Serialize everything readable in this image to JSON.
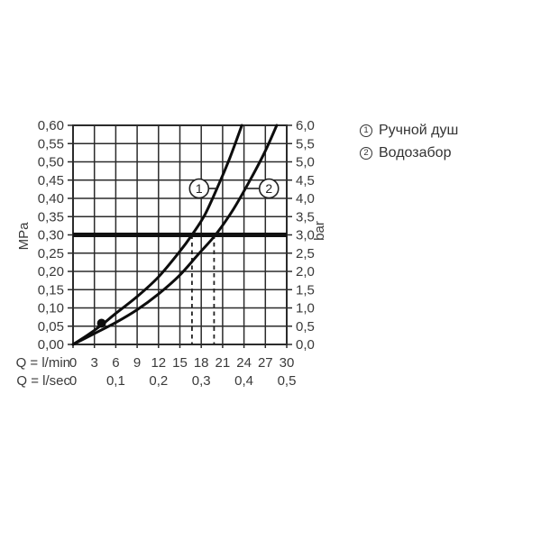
{
  "accent_colors": {
    "grid": "#2b2b2b",
    "curve": "#0d0d0d",
    "ref_line": "#111111",
    "text": "#3a3a3a",
    "background": "#ffffff"
  },
  "chart_data": {
    "type": "line",
    "title": "",
    "x_axis": {
      "label_lmin": "Q = l/min",
      "label_lsec": "Q = l/sec",
      "ticks_lmin": [
        "0",
        "3",
        "6",
        "9",
        "12",
        "15",
        "18",
        "21",
        "24",
        "27",
        "30"
      ],
      "ticks_lsec": [
        "0",
        "0,1",
        "0,2",
        "0,3",
        "0,4",
        "0,5"
      ],
      "range_lmin": [
        0,
        30
      ],
      "grid_step_lmin": 3
    },
    "y_axis_left": {
      "label": "MPa",
      "ticks": [
        "0,60",
        "0,55",
        "0,50",
        "0,45",
        "0,40",
        "0,35",
        "0,30",
        "0,25",
        "0,20",
        "0,15",
        "0,10",
        "0,05",
        "0,00"
      ],
      "range": [
        0,
        0.6
      ],
      "grid_step": 0.05
    },
    "y_axis_right": {
      "label": "bar",
      "ticks": [
        "6,0",
        "5,5",
        "5,0",
        "4,5",
        "4,0",
        "3,5",
        "3,0",
        "2,5",
        "2,0",
        "1,5",
        "1,0",
        "0,5",
        "0,0"
      ],
      "range": [
        0,
        6
      ]
    },
    "series": [
      {
        "id": "1",
        "name": "Ручной душ",
        "points": [
          [
            0,
            0
          ],
          [
            2,
            0.025
          ],
          [
            4,
            0.053
          ],
          [
            6,
            0.085
          ],
          [
            9,
            0.131
          ],
          [
            12,
            0.185
          ],
          [
            15,
            0.255
          ],
          [
            16.7,
            0.3
          ],
          [
            18.5,
            0.355
          ],
          [
            20.5,
            0.44
          ],
          [
            22,
            0.51
          ],
          [
            23.7,
            0.6
          ]
        ]
      },
      {
        "id": "2",
        "name": "Водозабор",
        "points": [
          [
            0,
            0
          ],
          [
            3,
            0.03
          ],
          [
            6,
            0.06
          ],
          [
            9,
            0.095
          ],
          [
            12,
            0.138
          ],
          [
            15,
            0.19
          ],
          [
            17.5,
            0.245
          ],
          [
            20,
            0.3
          ],
          [
            22.5,
            0.37
          ],
          [
            25,
            0.455
          ],
          [
            27,
            0.53
          ],
          [
            28.6,
            0.6
          ]
        ]
      }
    ],
    "annotations": {
      "ref_line_mpa": 0.3,
      "dashed_lines_lmin": [
        16.7,
        19.8
      ],
      "dot": {
        "q_lmin": 4,
        "p_mpa": 0.058
      },
      "series_markers": [
        {
          "label": "1",
          "q_lmin": 17.7,
          "p_mpa": 0.427,
          "connector_to_q": 20.2,
          "side": "right"
        },
        {
          "label": "2",
          "q_lmin": 27.5,
          "p_mpa": 0.427,
          "connector_to_q": 24.2,
          "side": "left"
        }
      ]
    },
    "legend": [
      {
        "symbol": "1",
        "label": "Ручной душ"
      },
      {
        "symbol": "2",
        "label": "Водозабор"
      }
    ],
    "legend_position": "top-right",
    "grid": true
  }
}
